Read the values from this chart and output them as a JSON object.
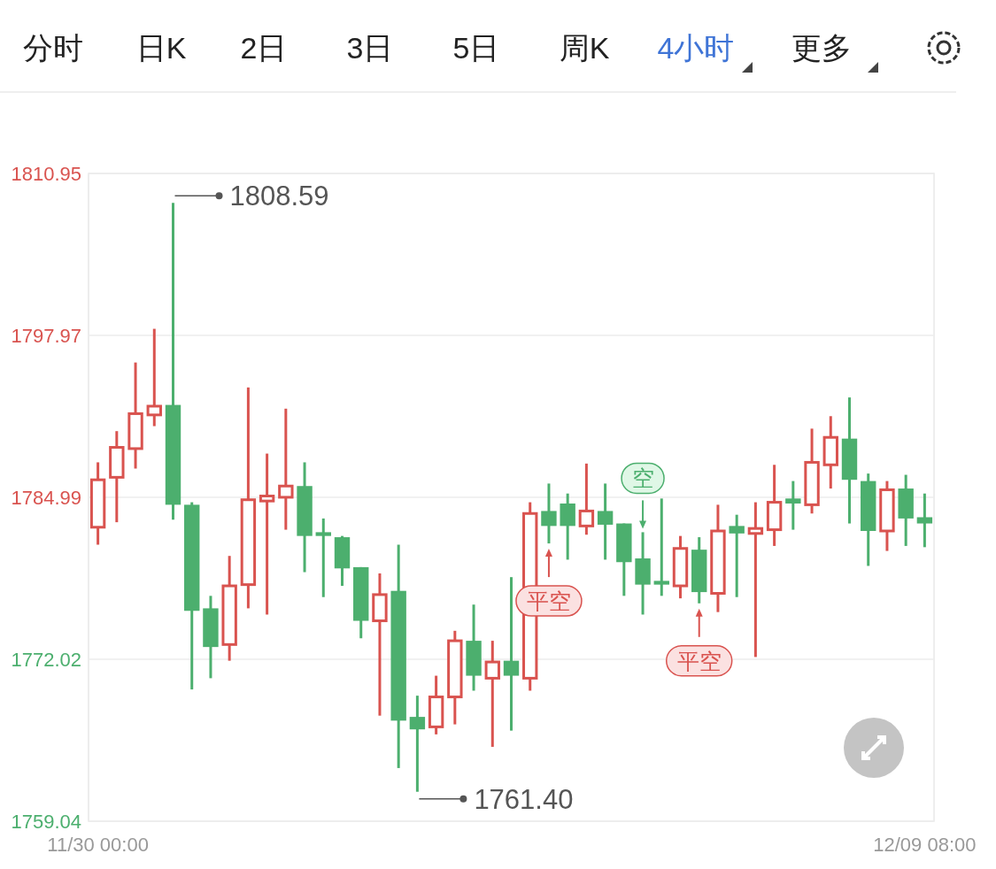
{
  "chart_data": {
    "type": "candlestick",
    "categories": [
      "11/30 00:00",
      null,
      null,
      null,
      null,
      null,
      null,
      null,
      null,
      null,
      null,
      null,
      null,
      null,
      null,
      null,
      null,
      null,
      null,
      null,
      null,
      null,
      null,
      null,
      null,
      null,
      null,
      null,
      null,
      null,
      null,
      null,
      null,
      null,
      null,
      null,
      null,
      null,
      null,
      null,
      null,
      null,
      null,
      null,
      "12/09 08:00"
    ],
    "ohlc": [
      [
        1782.6,
        1787.8,
        1781.2,
        1786.4
      ],
      [
        1786.6,
        1790.3,
        1783.0,
        1789.0
      ],
      [
        1788.9,
        1795.8,
        1787.3,
        1791.7
      ],
      [
        1791.6,
        1798.5,
        1790.7,
        1792.3
      ],
      [
        1792.4,
        1808.59,
        1783.2,
        1784.4
      ],
      [
        1784.4,
        1784.6,
        1769.6,
        1775.9
      ],
      [
        1776.1,
        1777.1,
        1770.5,
        1773.0
      ],
      [
        1773.2,
        1780.3,
        1771.9,
        1777.9
      ],
      [
        1778.0,
        1793.8,
        1776.1,
        1784.8
      ],
      [
        1784.7,
        1788.5,
        1775.6,
        1785.1
      ],
      [
        1785.0,
        1792.1,
        1782.4,
        1785.9
      ],
      [
        1785.9,
        1787.8,
        1779.0,
        1781.9
      ],
      [
        1782.2,
        1783.3,
        1777.0,
        1781.9
      ],
      [
        1781.8,
        1781.9,
        1777.9,
        1779.3
      ],
      [
        1779.4,
        1779.4,
        1773.7,
        1775.1
      ],
      [
        1775.1,
        1778.9,
        1767.5,
        1777.2
      ],
      [
        1777.5,
        1781.2,
        1763.3,
        1767.1
      ],
      [
        1767.4,
        1769.1,
        1761.4,
        1766.4
      ],
      [
        1766.6,
        1770.7,
        1766.0,
        1769.0
      ],
      [
        1769.0,
        1774.3,
        1766.8,
        1773.5
      ],
      [
        1773.5,
        1776.4,
        1769.5,
        1770.7
      ],
      [
        1770.5,
        1773.5,
        1765.0,
        1771.8
      ],
      [
        1771.9,
        1778.6,
        1766.3,
        1770.7
      ],
      [
        1770.5,
        1784.6,
        1769.5,
        1783.7
      ],
      [
        1783.9,
        1786.1,
        1781.3,
        1782.7
      ],
      [
        1784.5,
        1785.3,
        1780.0,
        1782.7
      ],
      [
        1782.7,
        1787.7,
        1782.0,
        1783.9
      ],
      [
        1783.9,
        1786.1,
        1780.0,
        1782.8
      ],
      [
        1782.9,
        1782.9,
        1777.1,
        1779.8
      ],
      [
        1780.1,
        1782.2,
        1775.6,
        1778.0
      ],
      [
        1778.3,
        1784.9,
        1777.1,
        1778.0
      ],
      [
        1777.9,
        1781.9,
        1776.9,
        1780.9
      ],
      [
        1780.8,
        1781.8,
        1776.5,
        1777.4
      ],
      [
        1777.3,
        1784.4,
        1775.8,
        1782.3
      ],
      [
        1782.7,
        1783.6,
        1777.0,
        1782.1
      ],
      [
        1782.1,
        1784.6,
        1772.2,
        1782.5
      ],
      [
        1782.4,
        1787.6,
        1781.1,
        1784.6
      ],
      [
        1784.9,
        1786.3,
        1782.4,
        1784.5
      ],
      [
        1784.4,
        1790.5,
        1783.7,
        1787.8
      ],
      [
        1787.6,
        1791.5,
        1785.7,
        1789.8
      ],
      [
        1789.7,
        1793.0,
        1782.9,
        1786.4
      ],
      [
        1786.3,
        1786.9,
        1779.5,
        1782.3
      ],
      [
        1782.3,
        1786.3,
        1780.7,
        1785.6
      ],
      [
        1785.7,
        1786.8,
        1781.1,
        1783.3
      ],
      [
        1783.4,
        1785.3,
        1781.0,
        1782.9
      ]
    ],
    "ylim": [
      1759.04,
      1810.95
    ],
    "yticks": [
      1759.04,
      1772.02,
      1784.99,
      1797.97,
      1810.95
    ],
    "grid": "y",
    "annotations": [
      "分时",
      "日K",
      "2日",
      "3日",
      "5日",
      "周K",
      "4小时",
      "更多",
      "1808.59",
      "1761.40",
      {
        "text": "平空",
        "y": 1781.3
      },
      {
        "text": "空",
        "y": 1782.2
      },
      {
        "text": "平空",
        "y": 1776.5
      }
    ]
  }
}
